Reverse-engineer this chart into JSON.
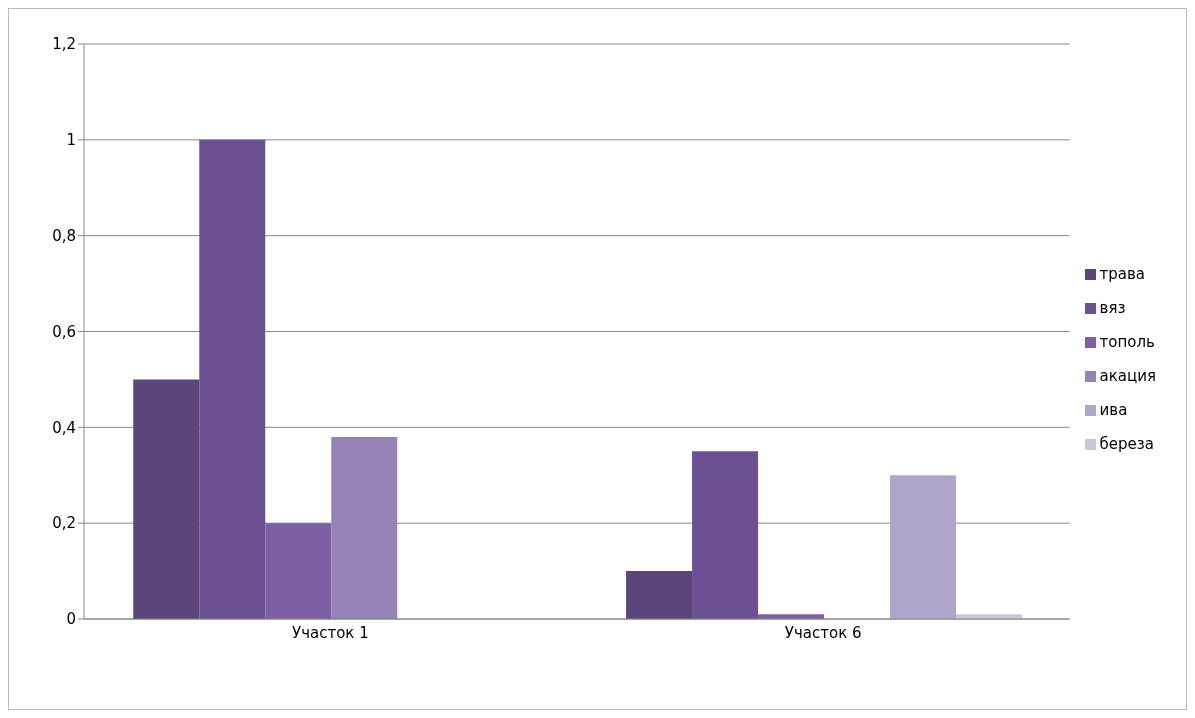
{
  "chart_data": {
    "type": "bar",
    "categories": [
      "Участок 1",
      "Участок 6"
    ],
    "series": [
      {
        "name": "трава",
        "color": "#5c4578",
        "values": [
          0.5,
          0.1
        ]
      },
      {
        "name": "вяз",
        "color": "#6b5192",
        "values": [
          1,
          0.35
        ]
      },
      {
        "name": "тополь",
        "color": "#7d5fa6",
        "values": [
          0.2,
          0.01
        ]
      },
      {
        "name": "акация",
        "color": "#9583b6",
        "values": [
          0.38,
          0
        ]
      },
      {
        "name": "ива",
        "color": "#b0a4c8",
        "values": [
          0,
          0.3
        ]
      },
      {
        "name": "береза",
        "color": "#cbc6d8",
        "values": [
          0,
          0.01
        ]
      }
    ],
    "ylim": [
      0,
      1.2
    ],
    "yticks": [
      0,
      {
        "value": 0.2,
        "label": "0,2"
      },
      {
        "value": 0.4,
        "label": "0,4"
      },
      {
        "value": 0.6,
        "label": "0,6"
      },
      {
        "value": 0.8,
        "label": "0,8"
      },
      1,
      {
        "value": 1.2,
        "label": "1,2"
      }
    ],
    "grid": "y",
    "legend": "right"
  }
}
